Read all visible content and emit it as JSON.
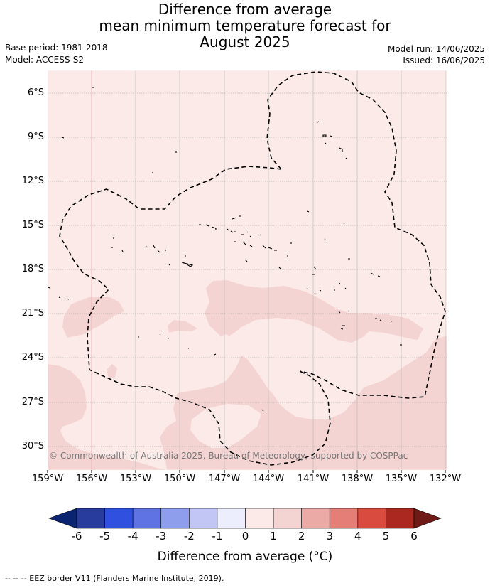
{
  "title": {
    "line1": "Difference from average",
    "line2": "mean minimum temperature forecast for",
    "line3": "August 2025"
  },
  "meta": {
    "base_period": "Base period: 1981-2018",
    "model": "Model: ACCESS-S2",
    "model_run": "Model run: 14/06/2025",
    "issued": "Issued: 16/06/2025"
  },
  "map": {
    "copyright": "© Commonwealth of Australia 2025, Bureau of Meteorology, supported by COSPPac",
    "lon_ticks": [
      "159°W",
      "156°W",
      "153°W",
      "150°W",
      "147°W",
      "144°W",
      "141°W",
      "138°W",
      "135°W",
      "132°W"
    ],
    "lat_ticks": [
      "6°S",
      "9°S",
      "12°S",
      "15°S",
      "18°S",
      "21°S",
      "24°S",
      "27°S",
      "30°S"
    ],
    "colors": {
      "anomaly_0_1": "#fbeae8",
      "anomaly_1_2": "#f4d4d2"
    }
  },
  "colorbar": {
    "labels": [
      "-6",
      "-5",
      "-4",
      "-3",
      "-2",
      "-1",
      "0",
      "1",
      "2",
      "3",
      "4",
      "5",
      "6"
    ],
    "colors": [
      "#0b2470",
      "#283c9e",
      "#3051e0",
      "#5f74e2",
      "#8f9ded",
      "#c1c6f5",
      "#eceefd",
      "#fbeae8",
      "#f4d4d2",
      "#ecaaa6",
      "#e57e77",
      "#d94a3f",
      "#aa2820",
      "#6e1a17"
    ],
    "title": "Difference from average (°C)"
  },
  "footnote": "--  --  -- EEZ border V11 (Flanders Marine Institute, 2019)."
}
